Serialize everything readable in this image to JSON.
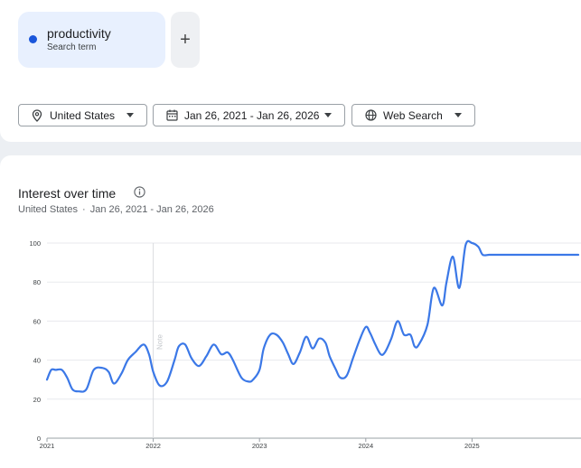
{
  "search_terms": [
    {
      "name": "productivity",
      "subtitle": "Search term",
      "color": "#1a56db"
    }
  ],
  "add_button": {
    "label": "+"
  },
  "filters": {
    "location": "United States",
    "date_range": "Jan 26, 2021 - Jan 26, 2026",
    "property": "Web Search"
  },
  "chart": {
    "title": "Interest over time",
    "subtitle_location": "United States",
    "subtitle_separator": "·",
    "subtitle_range": "Jan 26, 2021 - Jan 26, 2026",
    "note_label": "Note"
  },
  "chart_data": {
    "type": "line",
    "line_color": "#3b78e7",
    "ylim": [
      0,
      100
    ],
    "yticks": [
      0,
      20,
      40,
      60,
      80,
      100
    ],
    "grid": true,
    "x_ticks": [
      "2021",
      "2022",
      "2023",
      "2024",
      "2025"
    ],
    "x_tick_values": [
      2021.0,
      2022.0,
      2023.0,
      2024.0,
      2025.0
    ],
    "x_range": [
      2021.0,
      2026.0
    ],
    "note_x": 2022.0,
    "series": [
      {
        "x": [
          2021.0,
          2021.04,
          2021.08,
          2021.14,
          2021.19,
          2021.24,
          2021.3,
          2021.37,
          2021.44,
          2021.52,
          2021.58,
          2021.63,
          2021.7,
          2021.76,
          2021.83,
          2021.91,
          2021.96,
          2022.0,
          2022.06,
          2022.13,
          2022.2,
          2022.24,
          2022.3,
          2022.36,
          2022.43,
          2022.5,
          2022.57,
          2022.64,
          2022.7,
          2022.75,
          2022.83,
          2022.9,
          2022.94,
          2023.0,
          2023.04,
          2023.1,
          2023.16,
          2023.22,
          2023.27,
          2023.32,
          2023.38,
          2023.44,
          2023.5,
          2023.56,
          2023.62,
          2023.66,
          2023.72,
          2023.76,
          2023.82,
          2023.88,
          2023.94,
          2024.0,
          2024.04,
          2024.09,
          2024.14,
          2024.18,
          2024.24,
          2024.3,
          2024.36,
          2024.42,
          2024.46,
          2024.5,
          2024.58,
          2024.64,
          2024.72,
          2024.76,
          2024.82,
          2024.88,
          2024.94,
          2025.0,
          2025.06,
          2025.1,
          2025.16,
          2025.22,
          2025.28,
          2025.34,
          2025.4,
          2025.46,
          2025.52,
          2025.56,
          2025.62,
          2025.66,
          2025.72,
          2025.76,
          2025.8,
          2025.86,
          2025.92,
          2025.96,
          2026.0
        ],
        "y": [
          30,
          35,
          35,
          35,
          31,
          25,
          24,
          25,
          35,
          36,
          34,
          28,
          33,
          40,
          44,
          48,
          43,
          34,
          27,
          29,
          40,
          47,
          48,
          41,
          37,
          42,
          48,
          43,
          44,
          40,
          31,
          29,
          30,
          35,
          46,
          53,
          53,
          49,
          43,
          38,
          44,
          52,
          46,
          51,
          49,
          42,
          35,
          31,
          32,
          41,
          50,
          57,
          54,
          48,
          43,
          44,
          51,
          60,
          53,
          53,
          47,
          48,
          58,
          77,
          68,
          80,
          93,
          77,
          99,
          100,
          98,
          94,
          94,
          94,
          94,
          94,
          94,
          94,
          94,
          94,
          94,
          94,
          94,
          94,
          94,
          94,
          94,
          94,
          94
        ]
      }
    ]
  }
}
